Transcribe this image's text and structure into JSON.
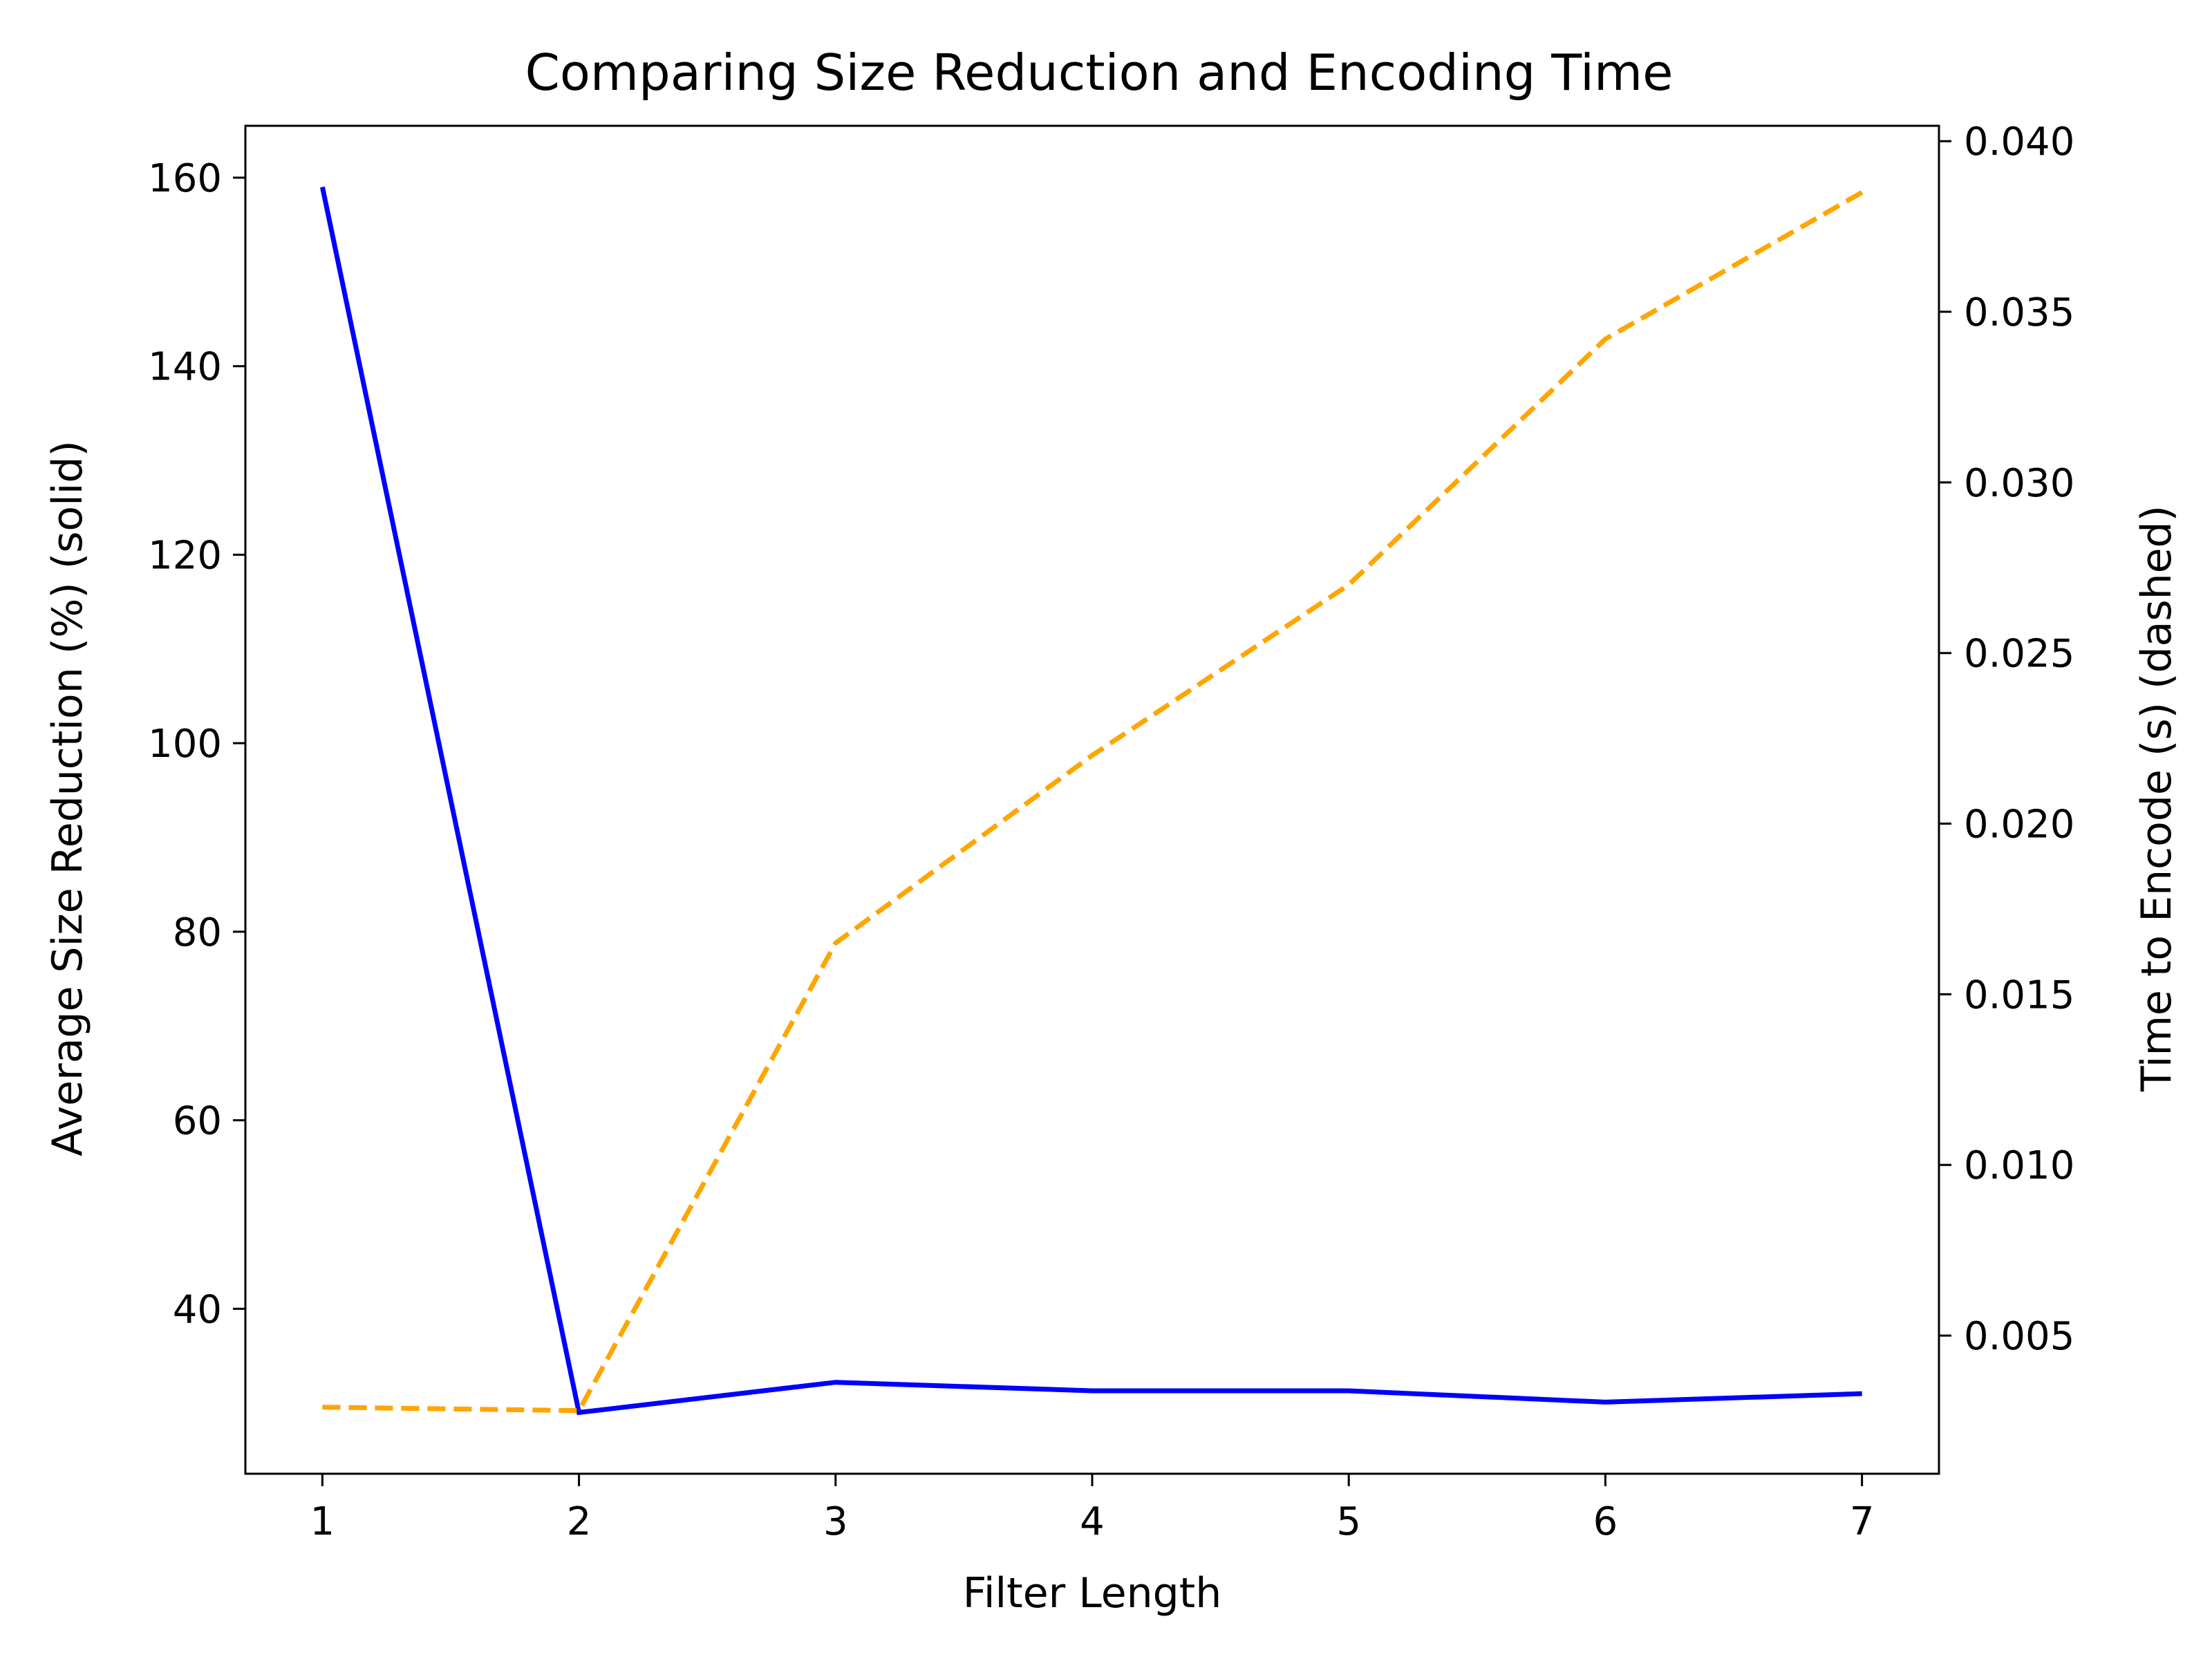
{
  "chart_data": {
    "type": "line",
    "title": "Comparing Size Reduction and Encoding Time",
    "xlabel": "Filter Length",
    "ylabel_left": "Average Size Reduction (%) (solid)",
    "ylabel_right": "Time to Encode (s) (dashed)",
    "x": [
      1,
      2,
      3,
      4,
      5,
      6,
      7
    ],
    "x_ticks": [
      "1",
      "2",
      "3",
      "4",
      "5",
      "6",
      "7"
    ],
    "xlim": [
      0.7,
      7.3
    ],
    "y_left_ticks": [
      "40",
      "60",
      "80",
      "100",
      "120",
      "140",
      "160"
    ],
    "y_left_tick_values": [
      40,
      60,
      80,
      100,
      120,
      140,
      160
    ],
    "ylim_left": [
      22.5,
      165.5
    ],
    "y_right_ticks": [
      "0.005",
      "0.010",
      "0.015",
      "0.020",
      "0.025",
      "0.030",
      "0.035",
      "0.040"
    ],
    "y_right_tick_values": [
      0.005,
      0.01,
      0.015,
      0.02,
      0.025,
      0.03,
      0.035,
      0.04
    ],
    "ylim_right": [
      0.00095,
      0.04045
    ],
    "grid": false,
    "series": [
      {
        "axis": "left",
        "style": "solid",
        "color": "#0000ff",
        "values": [
          159,
          29,
          32.2,
          31.3,
          31.3,
          30.1,
          31
        ]
      },
      {
        "axis": "right",
        "style": "dashed",
        "color": "#ffa500",
        "values": [
          0.0029,
          0.0028,
          0.0165,
          0.022,
          0.027,
          0.0342,
          0.0385
        ]
      }
    ]
  }
}
